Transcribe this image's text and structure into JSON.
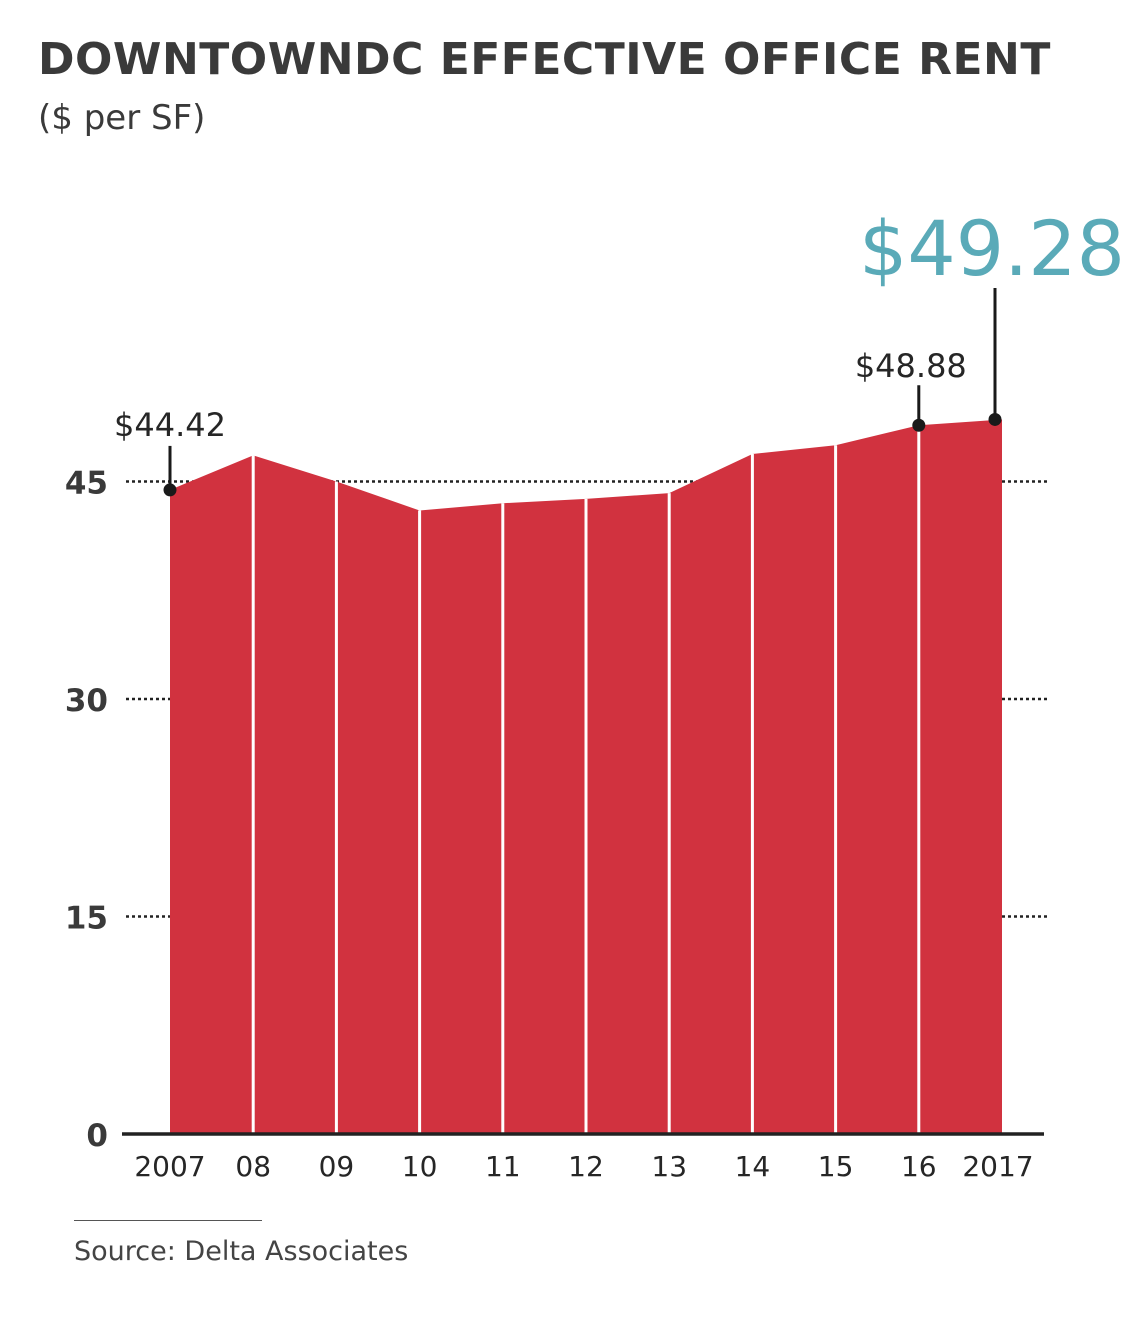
{
  "header": {
    "title": "DOWNTOWNDC EFFECTIVE OFFICE RENT",
    "subtitle": "($ per SF)"
  },
  "footer": {
    "source": "Source: Delta Associates"
  },
  "colors": {
    "area": "#d1323f",
    "highlight": "#5aaab8",
    "text": "#262626"
  },
  "chart_data": {
    "type": "area",
    "title": "DOWNTOWNDC EFFECTIVE OFFICE RENT",
    "subtitle": "($ per SF)",
    "xlabel": "",
    "ylabel": "",
    "categories": [
      "2007",
      "08",
      "09",
      "10",
      "11",
      "12",
      "13",
      "14",
      "15",
      "16",
      "2017"
    ],
    "values": [
      44.42,
      46.8,
      45.0,
      43.0,
      43.5,
      43.8,
      44.2,
      46.9,
      47.5,
      48.88,
      49.28
    ],
    "ylim": [
      0,
      50
    ],
    "yticks": [
      0,
      15,
      30,
      45
    ],
    "gridlines": [
      15,
      30,
      45
    ],
    "annotations": [
      {
        "index": 0,
        "text": "$44.42"
      },
      {
        "index": 9,
        "text": "$48.88"
      },
      {
        "index": 10,
        "text": "$49.28"
      }
    ]
  }
}
